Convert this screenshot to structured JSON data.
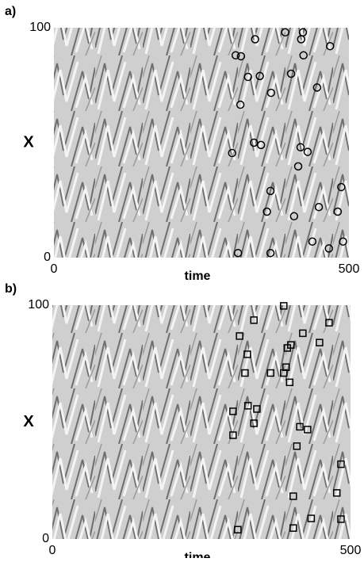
{
  "chart_data": [
    {
      "type": "scatter",
      "panel_label": "a)",
      "xlabel": "time",
      "ylabel": "X",
      "marker": "circle",
      "color": "#000000",
      "xlim": [
        0,
        500
      ],
      "ylim": [
        0,
        100
      ],
      "xticks": [
        0,
        500
      ],
      "yticks": [
        0,
        100
      ],
      "x": [
        302,
        308,
        317,
        316,
        329,
        341,
        349,
        339,
        351,
        368,
        392,
        402,
        419,
        422,
        423,
        418,
        430,
        414,
        446,
        468,
        367,
        361,
        407,
        449,
        487,
        481,
        438,
        466,
        490,
        312,
        367
      ],
      "values": [
        45.5,
        88,
        87.6,
        66.5,
        78.6,
        95,
        79,
        50,
        49,
        71.7,
        98,
        80,
        95,
        98,
        88,
        48,
        46,
        39.7,
        74,
        92,
        29,
        20,
        18,
        22,
        30.7,
        20,
        7,
        4,
        7,
        2,
        2
      ]
    },
    {
      "type": "scatter",
      "panel_label": "b)",
      "xlabel": "time",
      "ylabel": "X",
      "marker": "square",
      "color": "#000000",
      "xlim": [
        0,
        500
      ],
      "ylim": [
        0,
        100
      ],
      "xticks": [
        0,
        500
      ],
      "yticks": [
        0,
        100
      ],
      "x": [
        314,
        327,
        338,
        323,
        303,
        303,
        328,
        343,
        338,
        366,
        388,
        400,
        394,
        388,
        392,
        398,
        420,
        448,
        464,
        415,
        428,
        410,
        404,
        484,
        477,
        484,
        434,
        404,
        311
      ],
      "values": [
        86.8,
        79,
        93.6,
        71,
        54.6,
        44.4,
        57,
        55.6,
        49.5,
        71,
        99.7,
        83,
        81.7,
        71,
        73.5,
        67,
        88,
        84,
        92.5,
        48,
        46.8,
        39.7,
        18.3,
        32,
        19.7,
        8.5,
        8.8,
        4.7,
        4
      ]
    }
  ]
}
